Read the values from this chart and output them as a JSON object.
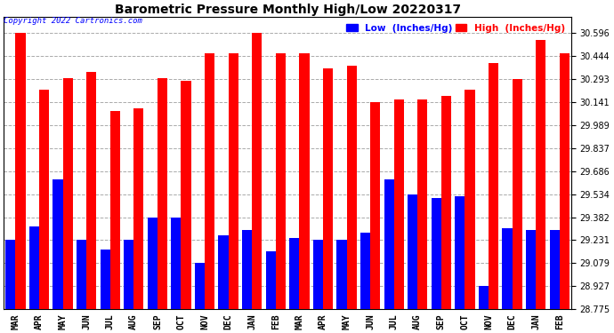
{
  "title": "Barometric Pressure Monthly High/Low 20220317",
  "copyright": "Copyright 2022 Cartronics.com",
  "legend_low": "Low  (Inches/Hg)",
  "legend_high": "High  (Inches/Hg)",
  "months": [
    "MAR",
    "APR",
    "MAY",
    "JUN",
    "JUL",
    "AUG",
    "SEP",
    "OCT",
    "NOV",
    "DEC",
    "JAN",
    "FEB",
    "MAR",
    "APR",
    "MAY",
    "JUN",
    "JUL",
    "AUG",
    "SEP",
    "OCT",
    "NOV",
    "DEC",
    "JAN",
    "FEB"
  ],
  "high_values": [
    30.596,
    30.22,
    30.3,
    30.34,
    30.08,
    30.1,
    30.3,
    30.28,
    30.46,
    30.46,
    30.596,
    30.46,
    30.46,
    30.36,
    30.38,
    30.14,
    30.16,
    30.16,
    30.18,
    30.22,
    30.4,
    30.293,
    30.55,
    30.46
  ],
  "low_values": [
    29.231,
    29.32,
    29.63,
    29.231,
    29.17,
    29.231,
    29.38,
    29.38,
    29.079,
    29.26,
    29.3,
    29.16,
    29.245,
    29.231,
    29.231,
    29.28,
    29.63,
    29.53,
    29.51,
    29.52,
    28.927,
    29.31,
    29.3,
    29.3
  ],
  "ylim_min": 28.775,
  "ylim_max": 30.7,
  "yticks": [
    28.775,
    28.927,
    29.079,
    29.231,
    29.382,
    29.534,
    29.686,
    29.837,
    29.989,
    30.141,
    30.293,
    30.444,
    30.596
  ],
  "bar_width": 0.42,
  "high_color": "#FF0000",
  "low_color": "#0000FF",
  "bg_color": "#FFFFFF",
  "grid_color": "#AAAAAA",
  "title_color": "#000000",
  "copyright_color": "#0000FF"
}
